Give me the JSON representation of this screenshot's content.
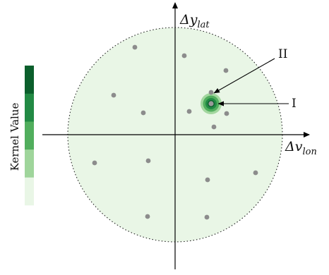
{
  "axes": {
    "y_label": {
      "main": "Δy",
      "sub": "lat"
    },
    "x_label": {
      "main": "Δv",
      "sub": "lon"
    }
  },
  "colorbar": {
    "label": "Kernel Value",
    "levels": [
      "#e9f6e6",
      "#9fd59b",
      "#51ae5d",
      "#228a44",
      "#0b5f2c"
    ]
  },
  "callouts": [
    {
      "id": "I",
      "text": "I"
    },
    {
      "id": "II",
      "text": "II"
    }
  ],
  "colors": {
    "region_fill": "#e9f6e6",
    "point": "#8c8c8c",
    "axis": "#000000"
  }
}
